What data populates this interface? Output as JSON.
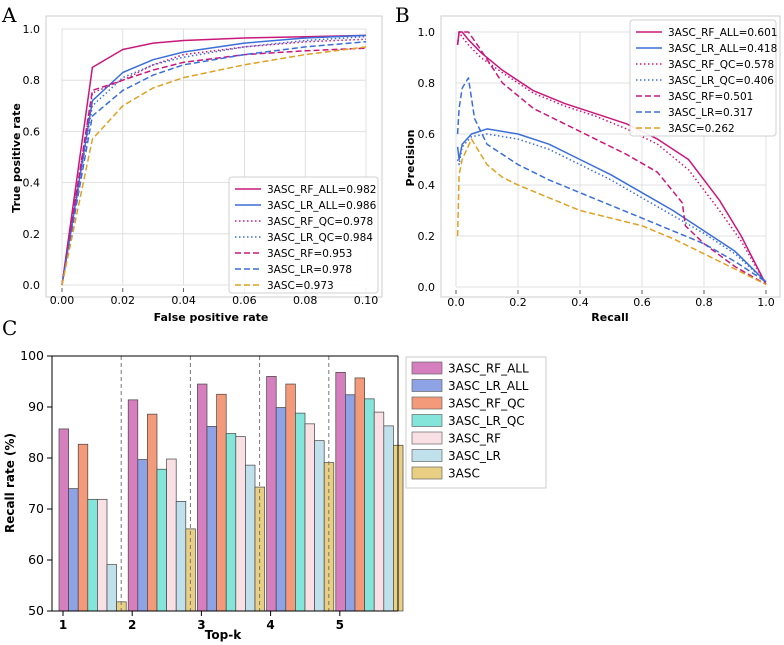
{
  "panels": {
    "a": "A",
    "b": "B",
    "c": "C"
  },
  "chart_data": [
    {
      "type": "line",
      "title": "",
      "xlabel": "False positive rate",
      "ylabel": "True positive rate",
      "xlim": [
        0.0,
        0.1
      ],
      "ylim": [
        0.0,
        1.0
      ],
      "xticks": [
        "0.00",
        "0.02",
        "0.04",
        "0.06",
        "0.08",
        "0.10"
      ],
      "yticks": [
        "0.0",
        "0.2",
        "0.4",
        "0.6",
        "0.8",
        "1.0"
      ],
      "grid": true,
      "legend_position": "bottom-right",
      "series": [
        {
          "name": "3ASC_RF_ALL=0.982",
          "color": "#c8187c",
          "dash": "solid",
          "x": [
            0,
            0.01,
            0.02,
            0.03,
            0.04,
            0.06,
            0.08,
            0.1
          ],
          "y": [
            0,
            0.85,
            0.92,
            0.945,
            0.955,
            0.965,
            0.97,
            0.975
          ]
        },
        {
          "name": "3ASC_LR_ALL=0.986",
          "color": "#3a6fd8",
          "dash": "solid",
          "x": [
            0,
            0.01,
            0.02,
            0.03,
            0.04,
            0.06,
            0.08,
            0.1
          ],
          "y": [
            0,
            0.72,
            0.83,
            0.88,
            0.91,
            0.945,
            0.965,
            0.975
          ]
        },
        {
          "name": "3ASC_RF_QC=0.978",
          "color": "#c8187c",
          "dash": "dotted",
          "x": [
            0,
            0.01,
            0.02,
            0.03,
            0.04,
            0.06,
            0.08,
            0.1
          ],
          "y": [
            0,
            0.75,
            0.8,
            0.86,
            0.9,
            0.93,
            0.95,
            0.96
          ]
        },
        {
          "name": "3ASC_LR_QC=0.984",
          "color": "#3a6fd8",
          "dash": "dotted",
          "x": [
            0,
            0.01,
            0.02,
            0.03,
            0.04,
            0.06,
            0.08,
            0.1
          ],
          "y": [
            0,
            0.7,
            0.81,
            0.86,
            0.89,
            0.93,
            0.955,
            0.97
          ]
        },
        {
          "name": "3ASC_RF=0.953",
          "color": "#c8187c",
          "dash": "dashed",
          "x": [
            0,
            0.01,
            0.02,
            0.03,
            0.04,
            0.06,
            0.08,
            0.1
          ],
          "y": [
            0,
            0.76,
            0.8,
            0.84,
            0.87,
            0.9,
            0.915,
            0.925
          ]
        },
        {
          "name": "3ASC_LR=0.978",
          "color": "#3a6fd8",
          "dash": "dashed",
          "x": [
            0,
            0.01,
            0.02,
            0.03,
            0.04,
            0.06,
            0.08,
            0.1
          ],
          "y": [
            0,
            0.66,
            0.76,
            0.82,
            0.86,
            0.9,
            0.93,
            0.95
          ]
        },
        {
          "name": "3ASC=0.973",
          "color": "#e0a020",
          "dash": "dashed",
          "x": [
            0,
            0.01,
            0.02,
            0.03,
            0.04,
            0.06,
            0.08,
            0.1
          ],
          "y": [
            0,
            0.57,
            0.7,
            0.77,
            0.81,
            0.86,
            0.9,
            0.93
          ]
        }
      ]
    },
    {
      "type": "line",
      "title": "",
      "xlabel": "Recall",
      "ylabel": "Precision",
      "xlim": [
        0.0,
        1.0
      ],
      "ylim": [
        0.0,
        1.0
      ],
      "xticks": [
        "0.0",
        "0.2",
        "0.4",
        "0.6",
        "0.8",
        "1.0"
      ],
      "yticks": [
        "0.0",
        "0.2",
        "0.4",
        "0.6",
        "0.8",
        "1.0"
      ],
      "grid": true,
      "legend_position": "top-right",
      "series": [
        {
          "name": "3ASC_RF_ALL=0.601",
          "color": "#c8187c",
          "dash": "solid",
          "x": [
            0.005,
            0.01,
            0.02,
            0.04,
            0.08,
            0.15,
            0.25,
            0.35,
            0.45,
            0.55,
            0.65,
            0.75,
            0.85,
            0.92,
            1.0
          ],
          "y": [
            0.95,
            1.0,
            1.0,
            0.97,
            0.92,
            0.85,
            0.77,
            0.72,
            0.68,
            0.64,
            0.58,
            0.5,
            0.34,
            0.2,
            0.01
          ]
        },
        {
          "name": "3ASC_LR_ALL=0.418",
          "color": "#3a6fd8",
          "dash": "solid",
          "x": [
            0.005,
            0.01,
            0.02,
            0.05,
            0.1,
            0.2,
            0.3,
            0.4,
            0.5,
            0.6,
            0.7,
            0.8,
            0.9,
            1.0
          ],
          "y": [
            0.55,
            0.5,
            0.56,
            0.6,
            0.62,
            0.6,
            0.56,
            0.5,
            0.44,
            0.37,
            0.3,
            0.22,
            0.14,
            0.02
          ]
        },
        {
          "name": "3ASC_RF_QC=0.578",
          "color": "#c8187c",
          "dash": "dotted",
          "x": [
            0.005,
            0.01,
            0.02,
            0.04,
            0.08,
            0.15,
            0.25,
            0.35,
            0.45,
            0.55,
            0.65,
            0.75,
            0.85,
            0.92,
            1.0
          ],
          "y": [
            0.95,
            1.0,
            0.98,
            0.95,
            0.9,
            0.84,
            0.76,
            0.71,
            0.67,
            0.62,
            0.56,
            0.46,
            0.3,
            0.18,
            0.01
          ]
        },
        {
          "name": "3ASC_LR_QC=0.406",
          "color": "#3a6fd8",
          "dash": "dotted",
          "x": [
            0.005,
            0.01,
            0.02,
            0.05,
            0.1,
            0.2,
            0.3,
            0.4,
            0.5,
            0.6,
            0.7,
            0.8,
            0.9,
            1.0
          ],
          "y": [
            0.5,
            0.48,
            0.55,
            0.59,
            0.6,
            0.58,
            0.54,
            0.48,
            0.42,
            0.35,
            0.28,
            0.21,
            0.13,
            0.02
          ]
        },
        {
          "name": "3ASC_RF=0.501",
          "color": "#c8187c",
          "dash": "dashed",
          "x": [
            0.005,
            0.01,
            0.02,
            0.04,
            0.08,
            0.15,
            0.25,
            0.35,
            0.45,
            0.55,
            0.65,
            0.73,
            0.74,
            0.8,
            0.9,
            1.0
          ],
          "y": [
            0.95,
            1.0,
            1.0,
            1.0,
            0.93,
            0.8,
            0.7,
            0.64,
            0.58,
            0.52,
            0.45,
            0.33,
            0.24,
            0.17,
            0.08,
            0.01
          ]
        },
        {
          "name": "3ASC_LR=0.317",
          "color": "#3a6fd8",
          "dash": "dashed",
          "x": [
            0.005,
            0.01,
            0.02,
            0.04,
            0.06,
            0.1,
            0.2,
            0.3,
            0.4,
            0.5,
            0.6,
            0.7,
            0.8,
            0.9,
            1.0
          ],
          "y": [
            0.6,
            0.7,
            0.78,
            0.82,
            0.66,
            0.56,
            0.48,
            0.42,
            0.37,
            0.32,
            0.27,
            0.22,
            0.17,
            0.1,
            0.02
          ]
        },
        {
          "name": "3ASC=0.262",
          "color": "#e0a020",
          "dash": "dashed",
          "x": [
            0.005,
            0.01,
            0.02,
            0.05,
            0.1,
            0.15,
            0.2,
            0.3,
            0.4,
            0.5,
            0.6,
            0.7,
            0.8,
            0.9,
            1.0
          ],
          "y": [
            0.2,
            0.44,
            0.5,
            0.58,
            0.48,
            0.43,
            0.4,
            0.35,
            0.3,
            0.27,
            0.24,
            0.19,
            0.13,
            0.07,
            0.01
          ]
        }
      ]
    },
    {
      "type": "bar",
      "title": "",
      "xlabel": "Top-k",
      "ylabel": "Recall rate (%)",
      "ylim": [
        50,
        100
      ],
      "yticks": [
        "50",
        "60",
        "70",
        "80",
        "90",
        "100"
      ],
      "categories": [
        "1",
        "2",
        "3",
        "4",
        "5"
      ],
      "legend_position": "right",
      "series": [
        {
          "name": "3ASC_RF_ALL",
          "color": "#d67fbf",
          "values": [
            85.7,
            91.4,
            94.5,
            96.0,
            96.8
          ]
        },
        {
          "name": "3ASC_LR_ALL",
          "color": "#8da3e6",
          "values": [
            74.0,
            79.7,
            86.2,
            89.9,
            92.4
          ]
        },
        {
          "name": "3ASC_RF_QC",
          "color": "#f39a7a",
          "values": [
            82.7,
            88.6,
            92.5,
            94.5,
            95.7
          ]
        },
        {
          "name": "3ASC_LR_QC",
          "color": "#84e6da",
          "values": [
            71.9,
            77.8,
            84.8,
            88.8,
            91.6
          ]
        },
        {
          "name": "3ASC_RF",
          "color": "#f9e0e4",
          "values": [
            71.9,
            79.8,
            84.2,
            86.7,
            89.0
          ]
        },
        {
          "name": "3ASC_LR",
          "color": "#c0e0ec",
          "values": [
            59.1,
            71.5,
            78.6,
            83.4,
            86.3
          ]
        },
        {
          "name": "3ASC",
          "color": "#e8cf83",
          "values": [
            51.8,
            66.1,
            74.3,
            79.1,
            82.5
          ]
        }
      ]
    }
  ]
}
